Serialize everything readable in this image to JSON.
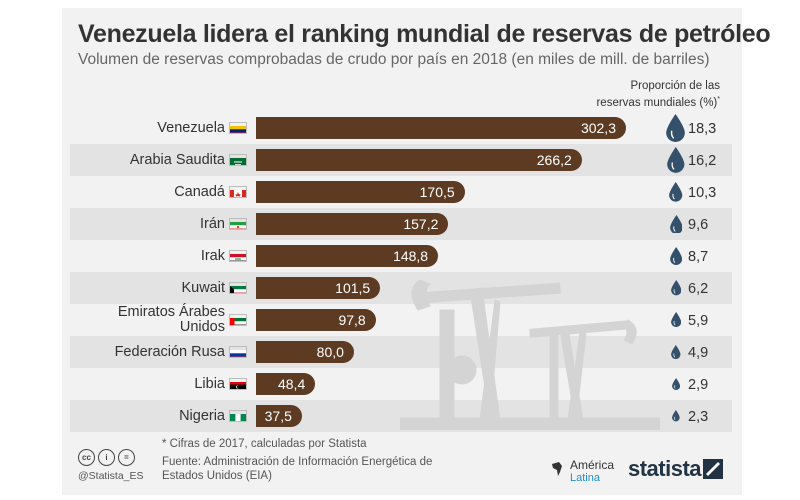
{
  "title": "Venezuela lidera el ranking mundial de reservas de petróleo",
  "subtitle": "Volumen de reservas comprobadas de crudo por país en 2018 (en miles de mill. de barriles)",
  "share_header_line1": "Proporción de las",
  "share_header_line2": "reservas mundiales (%)",
  "share_header_mark": "*",
  "footnote": "* Cifras de 2017, calculadas por Statista",
  "source": "Fuente: Administración de Información Energética de Estados Unidos (EIA)",
  "handle": "@Statista_ES",
  "cc_icons": [
    "cc",
    "i",
    "="
  ],
  "logos": {
    "america_latina_line1": "América",
    "america_latina_line2": "Latina",
    "statista": "statista"
  },
  "colors": {
    "bar": "#5d3b23",
    "drop": "#35506b",
    "stripe": "#e3e3e3",
    "background": "#f2f2f2"
  },
  "chart_data": {
    "type": "bar",
    "orientation": "horizontal",
    "title": "Venezuela lidera el ranking mundial de reservas de petróleo",
    "subtitle": "Volumen de reservas comprobadas de crudo por país en 2018 (en miles de mill. de barriles)",
    "categories": [
      "Venezuela",
      "Arabia Saudita",
      "Canadá",
      "Irán",
      "Irak",
      "Kuwait",
      "Emiratos Árabes Unidos",
      "Federación Rusa",
      "Libia",
      "Nigeria"
    ],
    "values": [
      302.3,
      266.2,
      170.5,
      157.2,
      148.8,
      101.5,
      97.8,
      80.0,
      48.4,
      37.5
    ],
    "value_labels": [
      "302,3",
      "266,2",
      "170,5",
      "157,2",
      "148,8",
      "101,5",
      "97,8",
      "80,0",
      "48,4",
      "37,5"
    ],
    "share_values": [
      18.3,
      16.2,
      10.3,
      9.6,
      8.7,
      6.2,
      5.9,
      4.9,
      2.9,
      2.3
    ],
    "share_labels": [
      "18,3",
      "16,2",
      "10,3",
      "9,6",
      "8,7",
      "6,2",
      "5,9",
      "4,9",
      "2,9",
      "2,3"
    ],
    "label_lines": [
      [
        "Venezuela"
      ],
      [
        "Arabia Saudita"
      ],
      [
        "Canadá"
      ],
      [
        "Irán"
      ],
      [
        "Irak"
      ],
      [
        "Kuwait"
      ],
      [
        "Emiratos Árabes",
        "Unidos"
      ],
      [
        "Federación Rusa"
      ],
      [
        "Libia"
      ],
      [
        "Nigeria"
      ]
    ],
    "flags": [
      "venezuela-flag",
      "saudi-arabia-flag",
      "canada-flag",
      "iran-flag",
      "iraq-flag",
      "kuwait-flag",
      "uae-flag",
      "russia-flag",
      "libya-flag",
      "nigeria-flag"
    ]
  }
}
